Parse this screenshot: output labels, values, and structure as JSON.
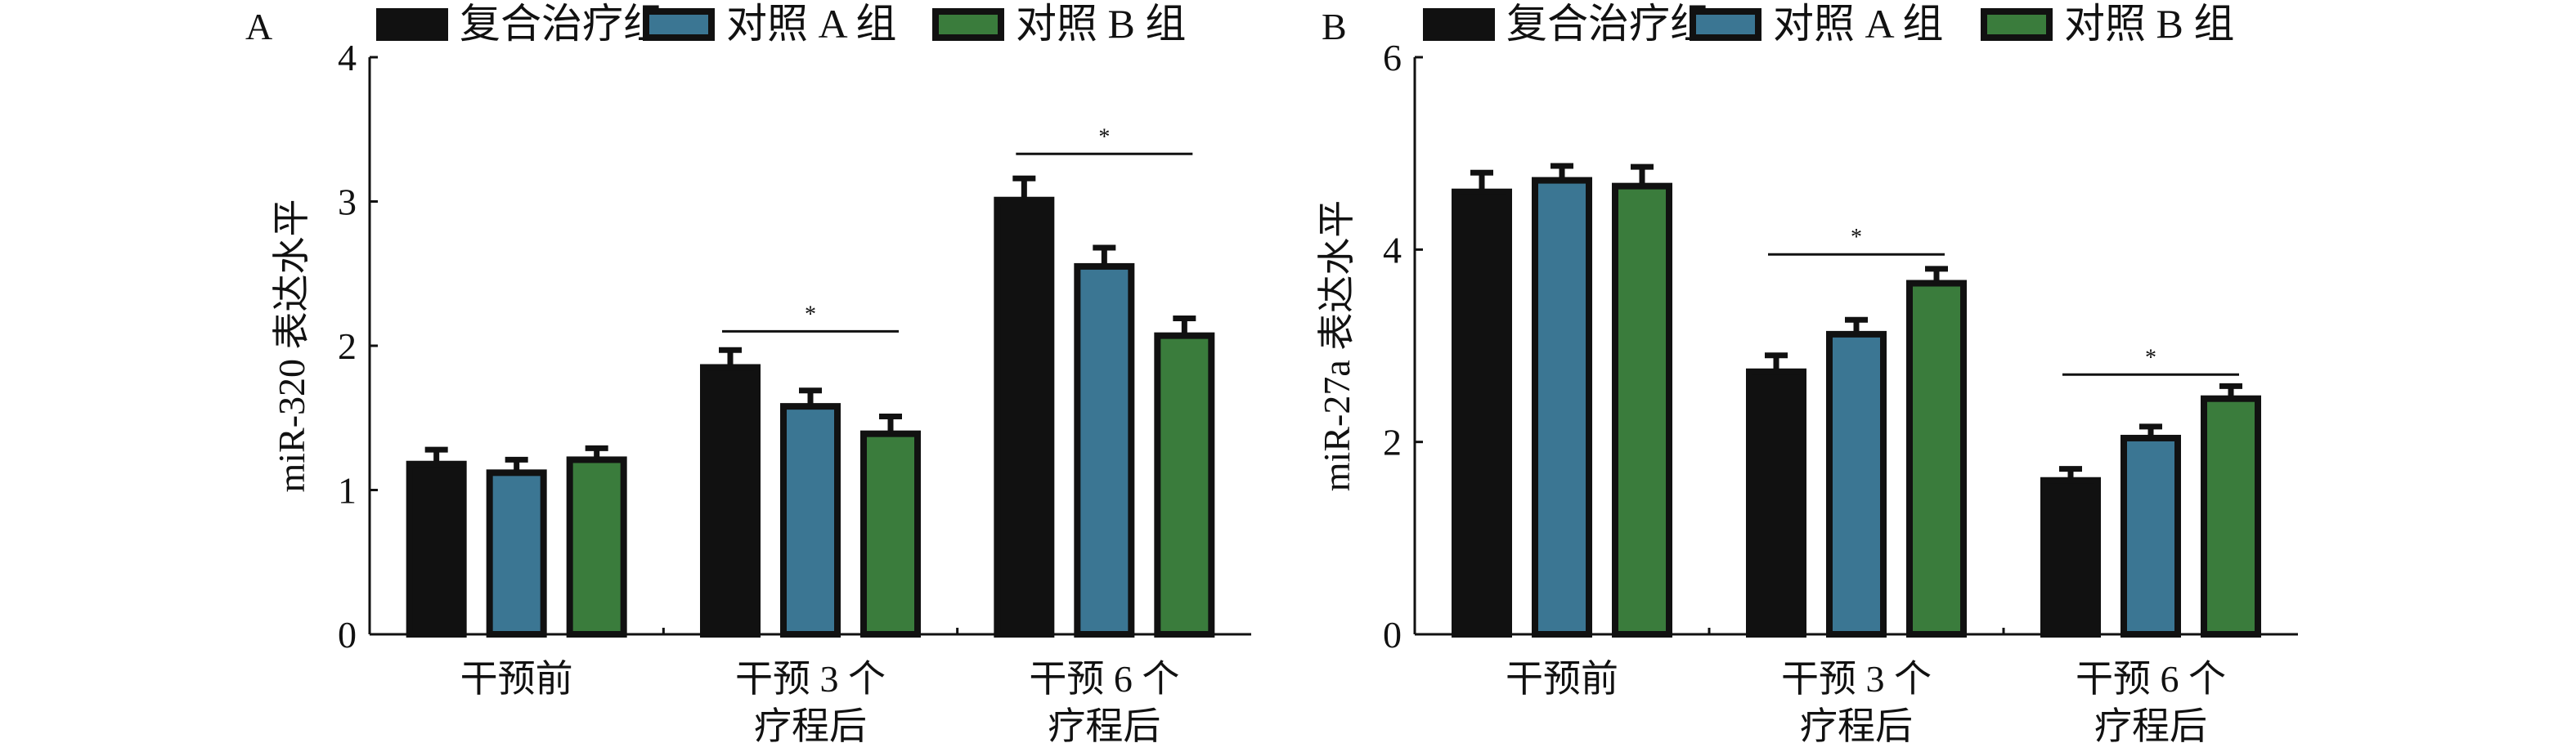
{
  "chart_data": [
    {
      "type": "bar",
      "panel": "A",
      "ylabel": "miR-320 表达水平",
      "ylim": [
        0,
        4
      ],
      "yticks": [
        "0",
        "1",
        "2",
        "3",
        "4"
      ],
      "categories": [
        [
          "干预前"
        ],
        [
          "干预 3 个",
          "疗程后"
        ],
        [
          "干预 6 个",
          "疗程后"
        ]
      ],
      "legend": [
        "复合治疗组",
        "对照 A 组",
        "对照 B 组"
      ],
      "colors": [
        "#111111",
        "#3b7693",
        "#3a7c3c"
      ],
      "series": [
        {
          "name": "复合治疗组",
          "values": [
            1.18,
            1.85,
            3.01
          ],
          "errors": [
            0.1,
            0.12,
            0.15
          ]
        },
        {
          "name": "对照 A 组",
          "values": [
            1.12,
            1.58,
            2.55
          ],
          "errors": [
            0.09,
            0.11,
            0.13
          ]
        },
        {
          "name": "对照 B 组",
          "values": [
            1.21,
            1.39,
            2.07
          ],
          "errors": [
            0.08,
            0.12,
            0.12
          ]
        }
      ],
      "significance": [
        {
          "group": 1,
          "level": 2.1,
          "label": "*"
        },
        {
          "group": 2,
          "level": 3.33,
          "label": "*"
        }
      ]
    },
    {
      "type": "bar",
      "panel": "B",
      "ylabel": "miR-27a 表达水平",
      "ylim": [
        0,
        6
      ],
      "yticks": [
        "0",
        "2",
        "4",
        "6"
      ],
      "categories": [
        [
          "干预前"
        ],
        [
          "干预 3 个",
          "疗程后"
        ],
        [
          "干预 6 个",
          "疗程后"
        ]
      ],
      "legend": [
        "复合治疗组",
        "对照 A 组",
        "对照 B 组"
      ],
      "colors": [
        "#111111",
        "#3b7693",
        "#3a7c3c"
      ],
      "series": [
        {
          "name": "复合治疗组",
          "values": [
            4.6,
            2.73,
            1.6
          ],
          "errors": [
            0.2,
            0.17,
            0.12
          ]
        },
        {
          "name": "对照 A 组",
          "values": [
            4.72,
            3.12,
            2.04
          ],
          "errors": [
            0.15,
            0.15,
            0.12
          ]
        },
        {
          "name": "对照 B 组",
          "values": [
            4.66,
            3.65,
            2.45
          ],
          "errors": [
            0.2,
            0.15,
            0.13
          ]
        }
      ],
      "significance": [
        {
          "group": 1,
          "level": 3.95,
          "label": "*"
        },
        {
          "group": 2,
          "level": 2.7,
          "label": "*"
        }
      ]
    }
  ]
}
